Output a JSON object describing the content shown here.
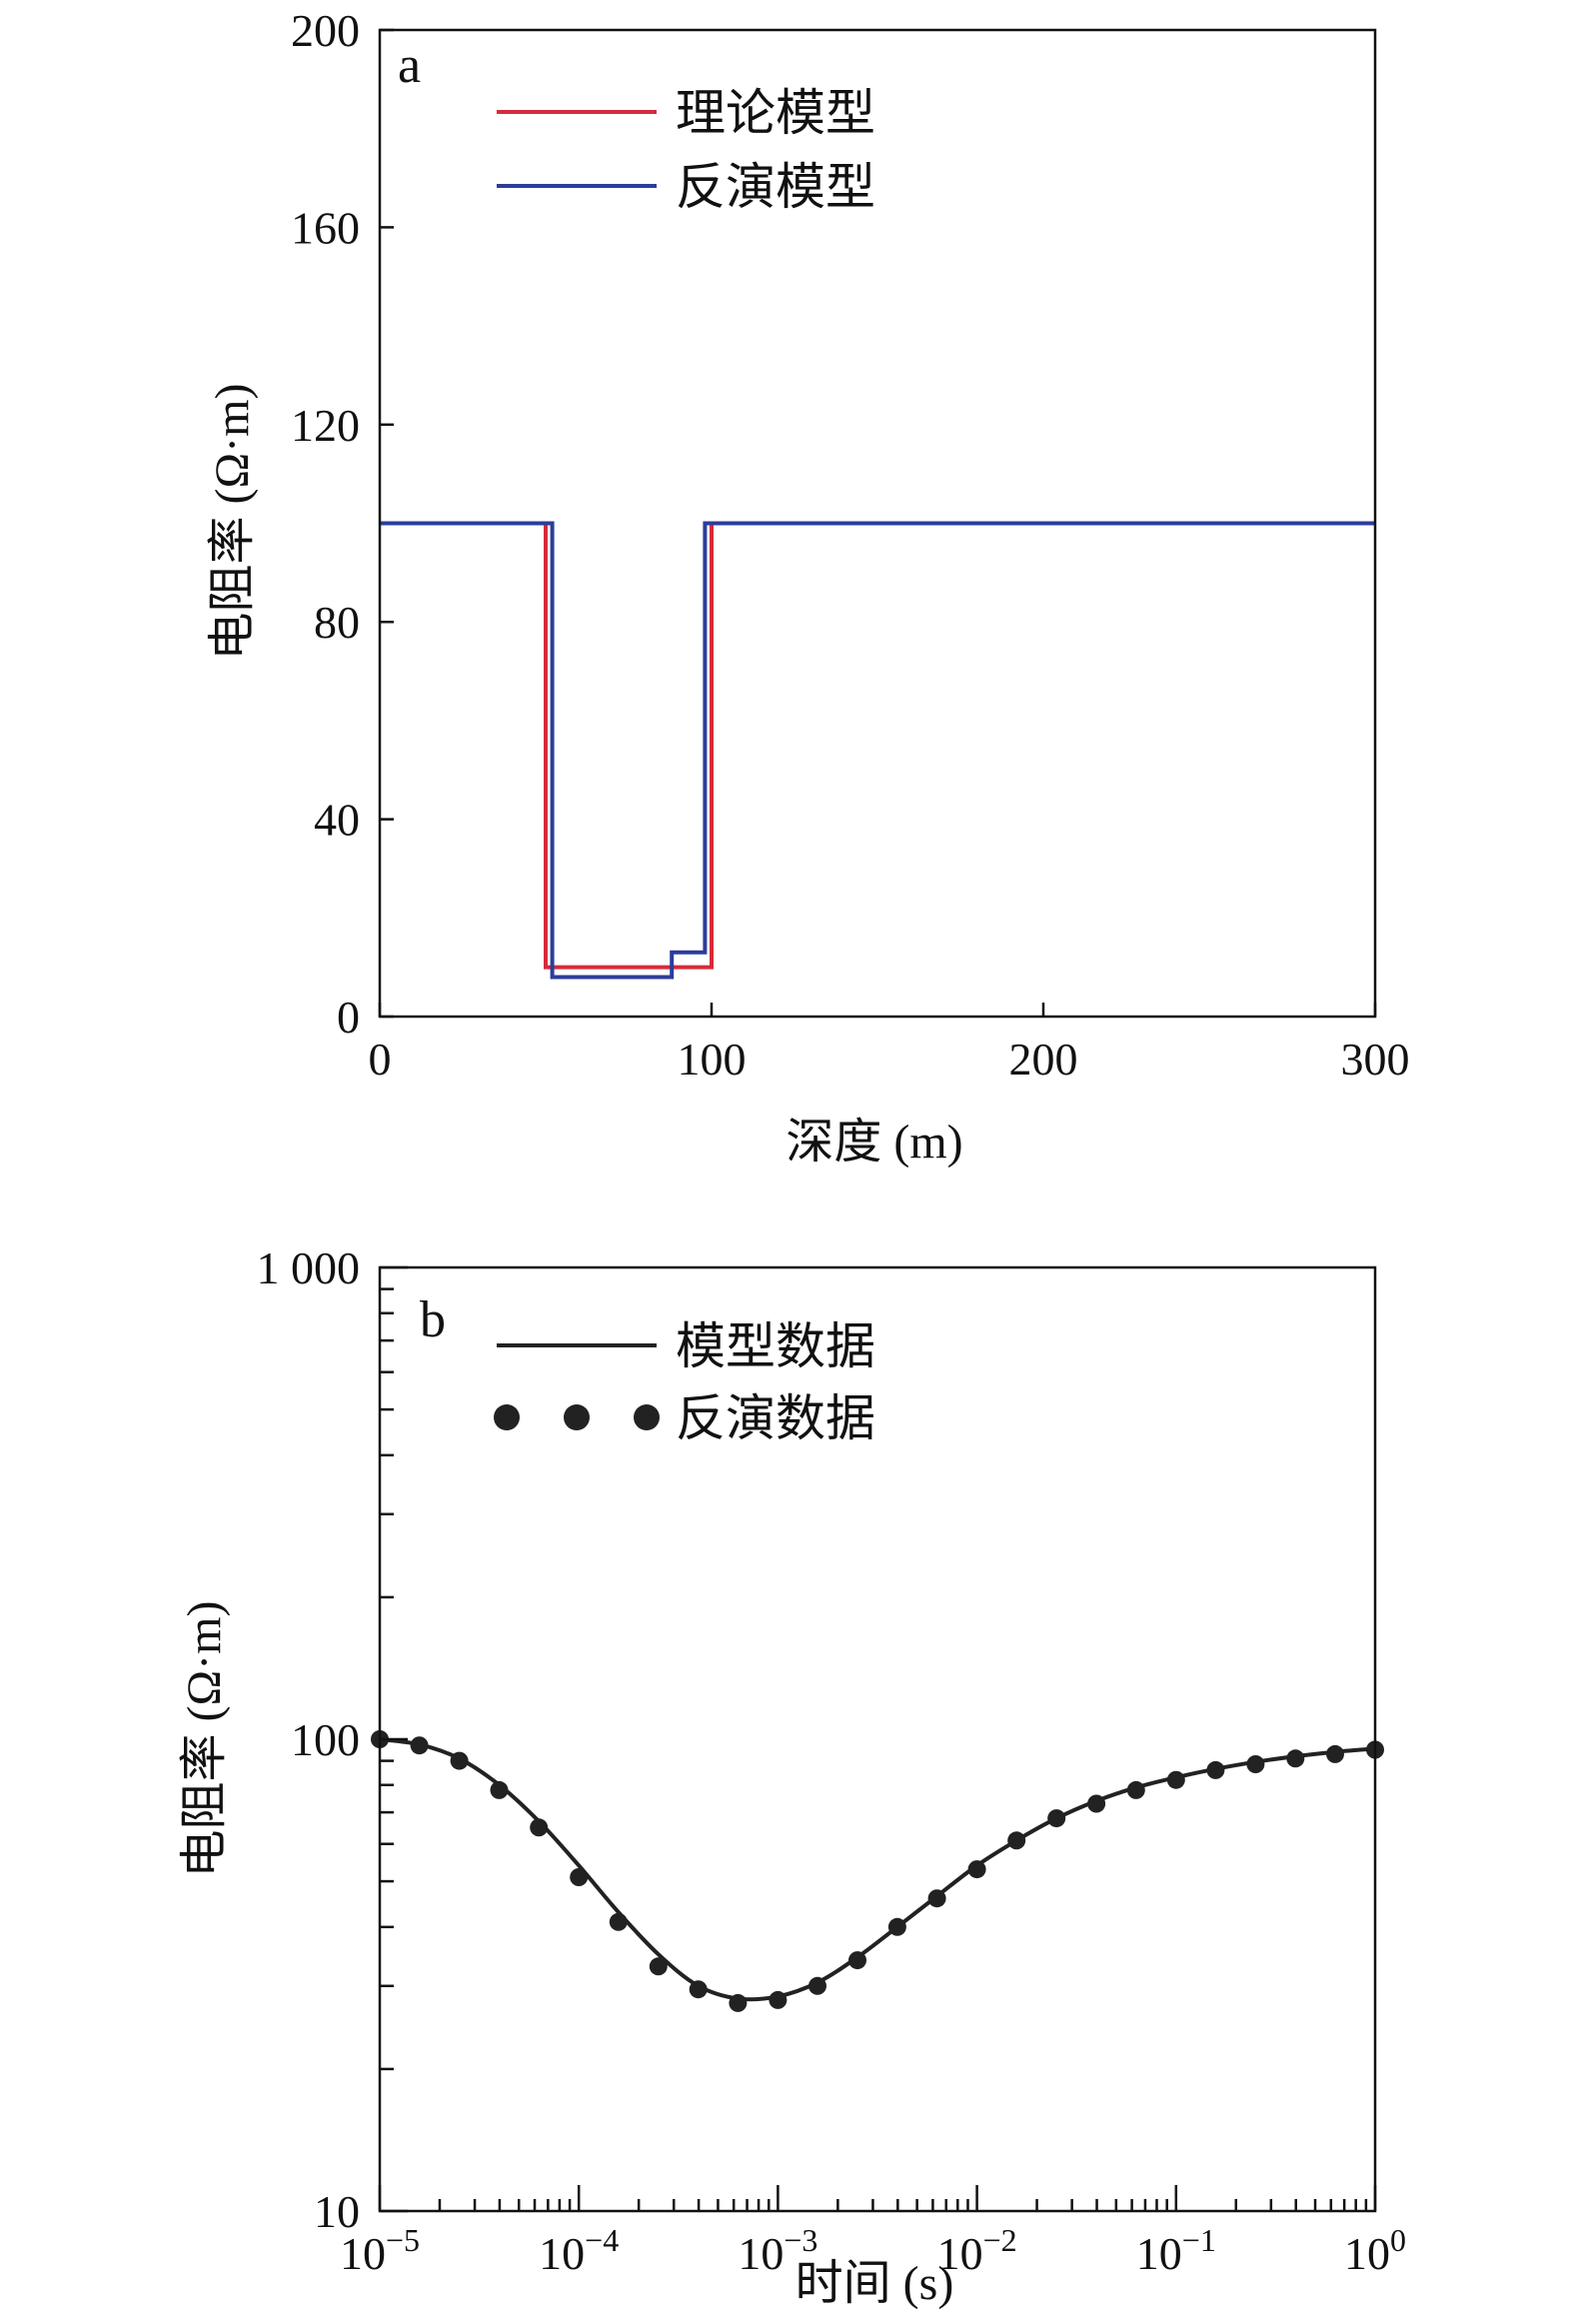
{
  "figure": {
    "colors": {
      "theory": "#d62b3a",
      "inversion": "#2b3d9b",
      "model": "#222222",
      "axis": "#111111"
    }
  },
  "chart_data": [
    {
      "panel": "a",
      "type": "line",
      "xlabel": "深度 (m)",
      "ylabel": "电阻率 (Ω·m)",
      "xlim": [
        0,
        300
      ],
      "ylim": [
        0,
        200
      ],
      "x_ticks": [
        0,
        100,
        200,
        300
      ],
      "x_tick_labels": [
        "0",
        "100",
        "200",
        "300"
      ],
      "y_ticks": [
        0,
        40,
        80,
        120,
        160,
        200
      ],
      "y_tick_labels": [
        "0",
        "40",
        "80",
        "120",
        "160",
        "200"
      ],
      "legend": {
        "placement": "top-left",
        "entries": [
          "理论模型",
          "反演模型"
        ]
      },
      "series": [
        {
          "name": "理论模型",
          "color": "#d62b3a",
          "step": true,
          "points": [
            [
              0,
              100
            ],
            [
              50,
              100
            ],
            [
              50,
              10
            ],
            [
              100,
              10
            ],
            [
              100,
              100
            ],
            [
              300,
              100
            ]
          ]
        },
        {
          "name": "反演模型",
          "color": "#2b3d9b",
          "step": true,
          "points": [
            [
              0,
              100
            ],
            [
              52,
              100
            ],
            [
              52,
              8
            ],
            [
              88,
              8
            ],
            [
              88,
              13
            ],
            [
              98,
              13
            ],
            [
              98,
              100
            ],
            [
              300,
              100
            ]
          ]
        }
      ]
    },
    {
      "panel": "b",
      "type": "line",
      "xlabel": "时间 (s)",
      "ylabel": "电阻率 (Ω·m)",
      "xscale": "log",
      "yscale": "log",
      "xlim": [
        1e-05,
        1
      ],
      "ylim": [
        10,
        1000
      ],
      "x_ticks": [
        1e-05,
        0.0001,
        0.001,
        0.01,
        0.1,
        1
      ],
      "x_tick_labels": [
        {
          "base": "10",
          "exp": "−5"
        },
        {
          "base": "10",
          "exp": "−4"
        },
        {
          "base": "10",
          "exp": "−3"
        },
        {
          "base": "10",
          "exp": "−2"
        },
        {
          "base": "10",
          "exp": "−1"
        },
        {
          "base": "10",
          "exp": "0"
        }
      ],
      "y_ticks": [
        10,
        100,
        1000
      ],
      "y_tick_labels": [
        "10",
        "100",
        "1 000"
      ],
      "legend": {
        "placement": "top-left",
        "entries": [
          "模型数据",
          "反演数据"
        ]
      },
      "series": [
        {
          "name": "模型数据",
          "style": "line",
          "color": "#222222",
          "x": [
            1e-05,
            1.58e-05,
            2.51e-05,
            3.98e-05,
            6.3e-05,
            0.0001,
            0.000158,
            0.000251,
            0.000398,
            0.00063,
            0.001,
            0.00158,
            0.00251,
            0.00398,
            0.0063,
            0.01,
            0.0158,
            0.0251,
            0.0398,
            0.063,
            0.1,
            0.158,
            0.251,
            0.398,
            0.63,
            1
          ],
          "y": [
            100,
            97.5,
            91,
            80,
            67,
            54,
            43,
            35,
            30,
            28.2,
            28.5,
            30.5,
            34.5,
            40,
            46.5,
            54,
            61,
            68,
            74,
            79,
            83,
            86.5,
            89.5,
            92,
            94,
            95.5
          ]
        },
        {
          "name": "反演数据",
          "style": "markers",
          "color": "#222222",
          "x": [
            1e-05,
            1.58e-05,
            2.51e-05,
            3.98e-05,
            6.3e-05,
            0.0001,
            0.000158,
            0.000251,
            0.000398,
            0.00063,
            0.001,
            0.00158,
            0.00251,
            0.00398,
            0.0063,
            0.01,
            0.0158,
            0.0251,
            0.0398,
            0.063,
            0.1,
            0.158,
            0.251,
            0.398,
            0.63,
            1
          ],
          "y": [
            100,
            97,
            90,
            78,
            65,
            51,
            41,
            33,
            29.5,
            27.6,
            28,
            30,
            34,
            40,
            46,
            53,
            61,
            68,
            73,
            78,
            82,
            86,
            88.5,
            91,
            93,
            95
          ]
        }
      ]
    }
  ]
}
